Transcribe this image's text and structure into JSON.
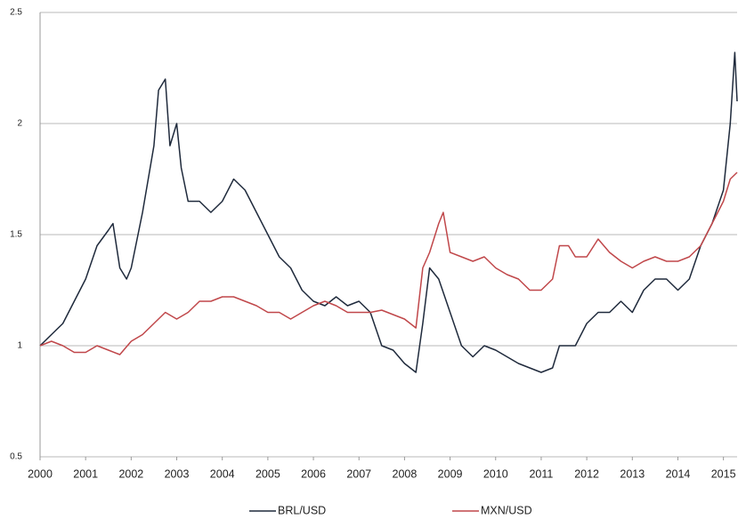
{
  "chart_data": {
    "type": "line",
    "xlim": [
      2000,
      2015.3
    ],
    "xticks": [
      2000,
      2001,
      2002,
      2003,
      2004,
      2005,
      2006,
      2007,
      2008,
      2009,
      2010,
      2011,
      2012,
      2013,
      2014,
      2015
    ],
    "ylim": [
      0.5,
      2.5
    ],
    "yticks": [
      0.5,
      1,
      1.5,
      2,
      2.5
    ],
    "grid": true,
    "legend": "bottom",
    "series": [
      {
        "name": "BRL/USD",
        "color": "#1f2a3c",
        "x": [
          2000.0,
          2000.25,
          2000.5,
          2000.75,
          2001.0,
          2001.25,
          2001.5,
          2001.6,
          2001.75,
          2001.9,
          2002.0,
          2002.25,
          2002.5,
          2002.6,
          2002.75,
          2002.85,
          2003.0,
          2003.1,
          2003.25,
          2003.5,
          2003.75,
          2004.0,
          2004.25,
          2004.5,
          2004.75,
          2005.0,
          2005.25,
          2005.5,
          2005.75,
          2006.0,
          2006.25,
          2006.5,
          2006.75,
          2007.0,
          2007.25,
          2007.5,
          2007.75,
          2008.0,
          2008.25,
          2008.4,
          2008.55,
          2008.75,
          2009.0,
          2009.25,
          2009.5,
          2009.75,
          2010.0,
          2010.25,
          2010.5,
          2010.75,
          2011.0,
          2011.25,
          2011.4,
          2011.75,
          2012.0,
          2012.25,
          2012.5,
          2012.75,
          2013.0,
          2013.25,
          2013.5,
          2013.75,
          2014.0,
          2014.25,
          2014.5,
          2014.75,
          2015.0,
          2015.15,
          2015.25,
          2015.3
        ],
        "values": [
          1.0,
          1.05,
          1.1,
          1.2,
          1.3,
          1.45,
          1.52,
          1.55,
          1.35,
          1.3,
          1.35,
          1.6,
          1.9,
          2.15,
          2.2,
          1.9,
          2.0,
          1.8,
          1.65,
          1.65,
          1.6,
          1.65,
          1.75,
          1.7,
          1.6,
          1.5,
          1.4,
          1.35,
          1.25,
          1.2,
          1.18,
          1.22,
          1.18,
          1.2,
          1.15,
          1.0,
          0.98,
          0.92,
          0.88,
          1.1,
          1.35,
          1.3,
          1.15,
          1.0,
          0.95,
          1.0,
          0.98,
          0.95,
          0.92,
          0.9,
          0.88,
          0.9,
          1.0,
          1.0,
          1.1,
          1.15,
          1.15,
          1.2,
          1.15,
          1.25,
          1.3,
          1.3,
          1.25,
          1.3,
          1.45,
          1.55,
          1.7,
          2.0,
          2.32,
          2.1
        ]
      },
      {
        "name": "MXN/USD",
        "color": "#c0474a",
        "x": [
          2000.0,
          2000.25,
          2000.5,
          2000.75,
          2001.0,
          2001.25,
          2001.5,
          2001.75,
          2002.0,
          2002.25,
          2002.5,
          2002.75,
          2003.0,
          2003.25,
          2003.5,
          2003.75,
          2004.0,
          2004.25,
          2004.5,
          2004.75,
          2005.0,
          2005.25,
          2005.5,
          2005.75,
          2006.0,
          2006.25,
          2006.5,
          2006.75,
          2007.0,
          2007.25,
          2007.5,
          2007.75,
          2008.0,
          2008.25,
          2008.4,
          2008.55,
          2008.75,
          2008.85,
          2009.0,
          2009.25,
          2009.5,
          2009.75,
          2010.0,
          2010.25,
          2010.5,
          2010.75,
          2011.0,
          2011.25,
          2011.4,
          2011.6,
          2011.75,
          2012.0,
          2012.25,
          2012.5,
          2012.75,
          2013.0,
          2013.25,
          2013.5,
          2013.75,
          2014.0,
          2014.25,
          2014.5,
          2014.75,
          2015.0,
          2015.15,
          2015.3
        ],
        "values": [
          1.0,
          1.02,
          1.0,
          0.97,
          0.97,
          1.0,
          0.98,
          0.96,
          1.02,
          1.05,
          1.1,
          1.15,
          1.12,
          1.15,
          1.2,
          1.2,
          1.22,
          1.22,
          1.2,
          1.18,
          1.15,
          1.15,
          1.12,
          1.15,
          1.18,
          1.2,
          1.18,
          1.15,
          1.15,
          1.15,
          1.16,
          1.14,
          1.12,
          1.08,
          1.35,
          1.42,
          1.55,
          1.6,
          1.42,
          1.4,
          1.38,
          1.4,
          1.35,
          1.32,
          1.3,
          1.25,
          1.25,
          1.3,
          1.45,
          1.45,
          1.4,
          1.4,
          1.48,
          1.42,
          1.38,
          1.35,
          1.38,
          1.4,
          1.38,
          1.38,
          1.4,
          1.45,
          1.55,
          1.65,
          1.75,
          1.78
        ]
      }
    ]
  }
}
